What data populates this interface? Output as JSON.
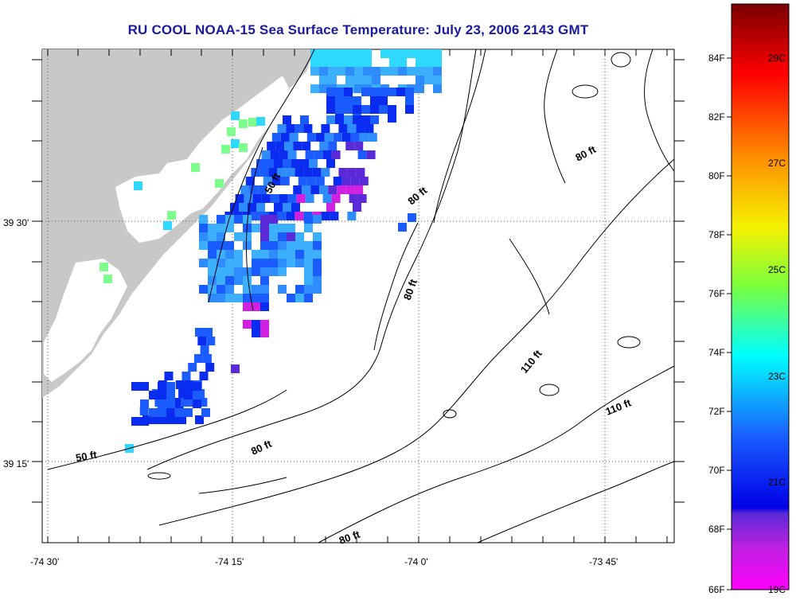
{
  "title": "RU COOL  NOAA-15  Sea Surface Temperature:  July 23, 2006 2143 GMT",
  "map": {
    "lat_labels": [
      "39 30'",
      "39 15'"
    ],
    "lon_labels": [
      "-74 30'",
      "-74 15'",
      "-74 0'",
      "-73 45'"
    ],
    "contour_labels": [
      "50 ft",
      "80 ft",
      "80 ft",
      "80 ft",
      "80 ft",
      "110 ft",
      "110 ft",
      "80 ft",
      "50 ft"
    ],
    "land_color": "#c8c8c8",
    "ocean_color": "#ffffff"
  },
  "colorbar": {
    "fahrenheit_labels": [
      "84F",
      "82F",
      "80F",
      "78F",
      "76F",
      "74F",
      "72F",
      "70F",
      "68F",
      "66F"
    ],
    "celsius_labels": [
      "29C",
      "27C",
      "25C",
      "23C",
      "21C",
      "19C"
    ],
    "colors": {
      "top": "#7a0000",
      "red": "#ff1a00",
      "orange": "#ff8c00",
      "yellow": "#f5f000",
      "green": "#7cff3a",
      "cyan": "#00ffff",
      "blue": "#1a5cff",
      "deep_blue": "#0000e6",
      "purple": "#7a1ad6",
      "magenta": "#ff00ff"
    }
  },
  "sst_cells": [
    {
      "c": "#3cb0ff"
    },
    {
      "c": "#2e8cff"
    },
    {
      "c": "#1a5cff"
    },
    {
      "c": "#0a2cf0"
    },
    {
      "c": "#5a2ad8"
    },
    {
      "c": "#d020e0"
    },
    {
      "c": "#2fd8ff"
    },
    {
      "c": "#7cff8c"
    }
  ]
}
